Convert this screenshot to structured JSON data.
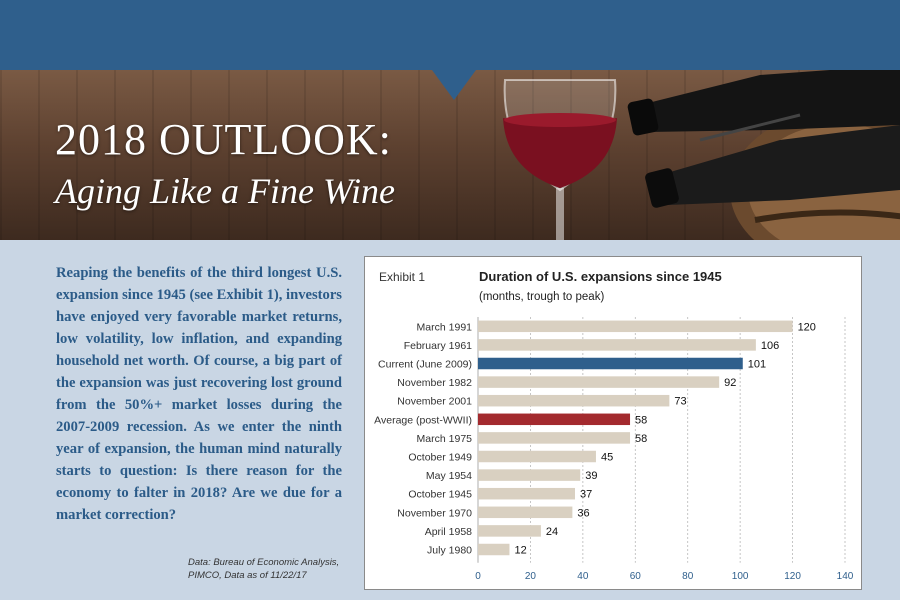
{
  "header": {
    "title": "2018 OUTLOOK:",
    "subtitle": "Aging Like a Fine Wine"
  },
  "body": {
    "paragraph": "Reaping the benefits of the third longest U.S. expansion since 1945 (see Exhibit 1), investors have enjoyed very favorable market returns, low volatility, low inflation, and expanding household net worth. Of course, a big part of the expansion was just recovering lost ground from the 50%+ market losses during the 2007-2009 recession. As we enter the ninth year of expansion, the human mind naturally starts to question: Is there reason for the economy to falter in 2018? Are we due for a market correction?",
    "source_line1": "Data: Bureau of Economic Analysis,",
    "source_line2": "PIMCO, Data as of 11/22/17"
  },
  "chart_data": {
    "type": "bar",
    "orientation": "horizontal",
    "exhibit_label": "Exhibit 1",
    "title": "Duration of U.S. expansions since 1945",
    "subtitle": "(months, trough to peak)",
    "categories": [
      "March 1991",
      "February 1961",
      "Current (June 2009)",
      "November 1982",
      "November 2001",
      "Average (post-WWII)",
      "March 1975",
      "October 1949",
      "May 1954",
      "October 1945",
      "November 1970",
      "April 1958",
      "July 1980"
    ],
    "values": [
      120,
      106,
      101,
      92,
      73,
      58,
      58,
      45,
      39,
      37,
      36,
      24,
      12
    ],
    "bar_colors": [
      "#d9d0c1",
      "#d9d0c1",
      "#2f5f8c",
      "#d9d0c1",
      "#d9d0c1",
      "#a32a2e",
      "#d9d0c1",
      "#d9d0c1",
      "#d9d0c1",
      "#d9d0c1",
      "#d9d0c1",
      "#d9d0c1",
      "#d9d0c1"
    ],
    "xlim": [
      0,
      140
    ],
    "xticks": [
      0,
      20,
      40,
      60,
      80,
      100,
      120,
      140
    ],
    "grid": "vertical dashed",
    "tick_color": "#2f5f8c"
  }
}
